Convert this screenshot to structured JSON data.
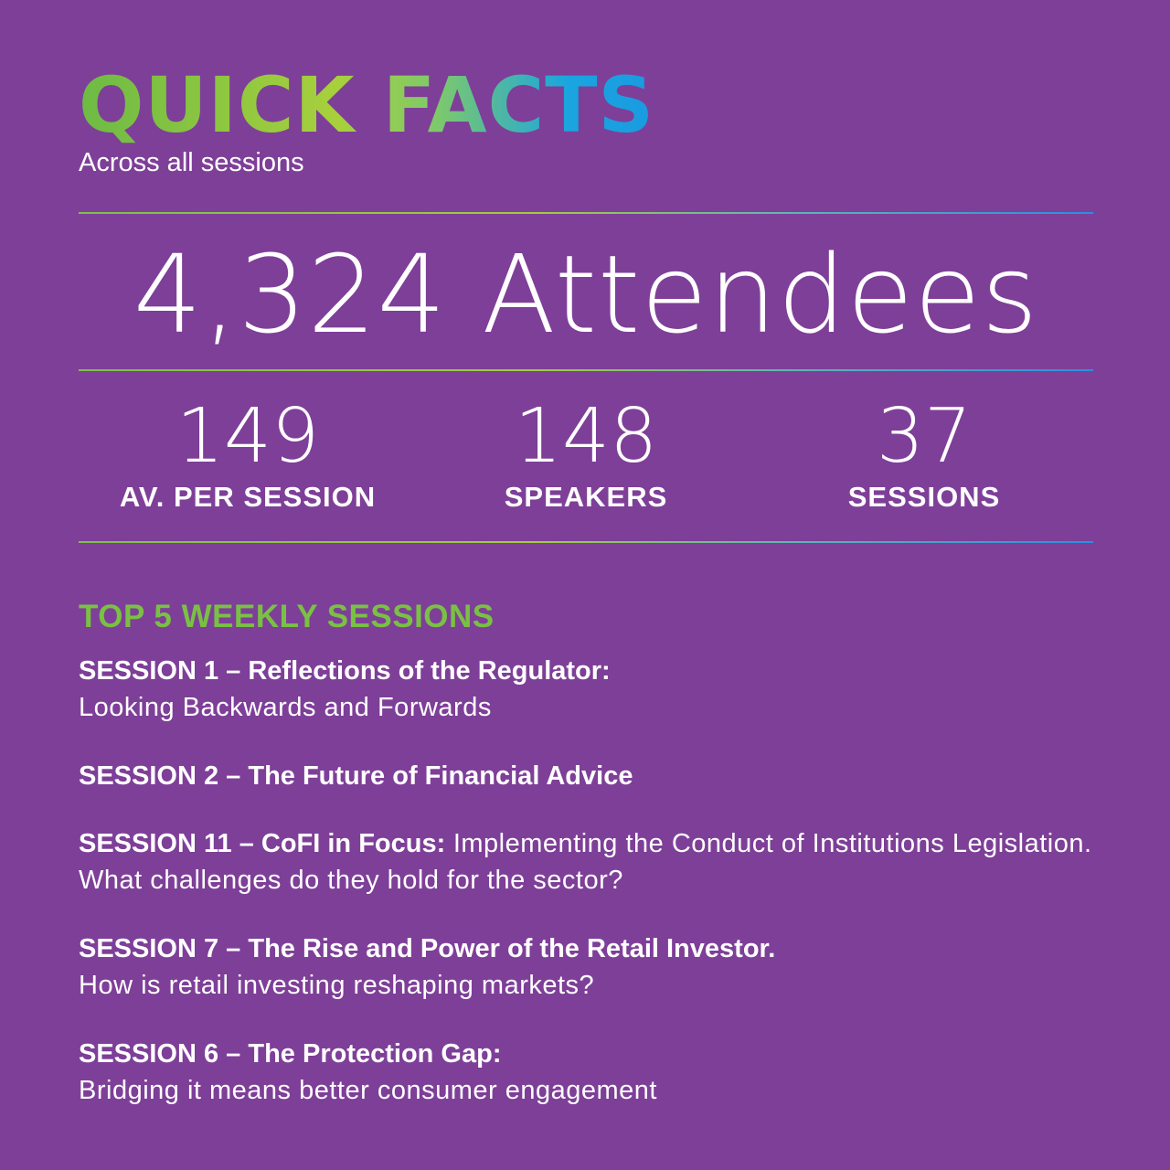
{
  "header": {
    "title": "QUICK FACTS",
    "subtitle": "Across all sessions"
  },
  "headline": {
    "value": "4,324",
    "label": "Attendees"
  },
  "stats": [
    {
      "value": "149",
      "label": "AV. PER SESSION"
    },
    {
      "value": "148",
      "label": "SPEAKERS"
    },
    {
      "value": "37",
      "label": "SESSIONS"
    }
  ],
  "top_sessions": {
    "title": "TOP 5 WEEKLY SESSIONS",
    "items": [
      {
        "head": "SESSION 1 – Reflections of the Regulator:",
        "body": "Looking Backwards and Forwards"
      },
      {
        "head": "SESSION 2 – The Future of Financial Advice",
        "body": ""
      },
      {
        "head": "SESSION 11 – CoFI in Focus:",
        "body": " Implementing the Conduct of Institutions Legislation. What challenges do they hold for the sector?"
      },
      {
        "head": "SESSION 7 – The Rise and Power of the Retail Investor.",
        "body": "How is retail investing reshaping markets?"
      },
      {
        "head": "SESSION 6 – The Protection Gap:",
        "body": "Bridging it means better consumer engagement"
      }
    ]
  },
  "colors": {
    "background": "#7e3f98",
    "accent_green": "#79c143",
    "accent_blue": "#1aa5e0",
    "text": "#ffffff"
  }
}
